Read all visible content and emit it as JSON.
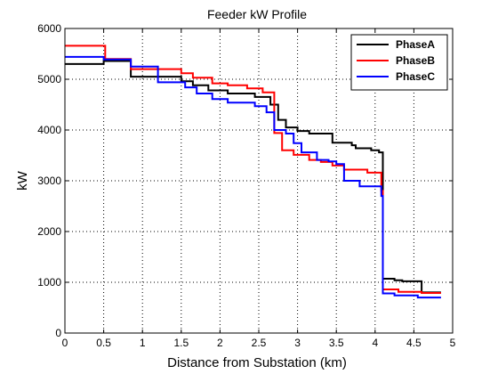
{
  "chart_data": {
    "type": "line",
    "step": true,
    "title": "Feeder kW Profile",
    "xlabel": "Distance from Substation (km)",
    "ylabel": "kW",
    "xlim": [
      0,
      5
    ],
    "ylim": [
      0,
      6000
    ],
    "x_ticks": [
      "0",
      "0.5",
      "1",
      "1.5",
      "2",
      "2.5",
      "3",
      "3.5",
      "4",
      "4.5",
      "5"
    ],
    "y_ticks": [
      "0",
      "1000",
      "2000",
      "3000",
      "4000",
      "5000",
      "6000"
    ],
    "grid": true,
    "legend_position": "top-right",
    "series": [
      {
        "name": "PhaseA",
        "color": "#000000",
        "points": [
          [
            0,
            5300
          ],
          [
            0.5,
            5300
          ],
          [
            0.5,
            5360
          ],
          [
            0.85,
            5360
          ],
          [
            0.85,
            5050
          ],
          [
            1.5,
            5050
          ],
          [
            1.5,
            4960
          ],
          [
            1.65,
            4960
          ],
          [
            1.65,
            4880
          ],
          [
            1.85,
            4880
          ],
          [
            1.85,
            4780
          ],
          [
            2.1,
            4780
          ],
          [
            2.1,
            4720
          ],
          [
            2.45,
            4720
          ],
          [
            2.45,
            4650
          ],
          [
            2.65,
            4650
          ],
          [
            2.65,
            4500
          ],
          [
            2.75,
            4500
          ],
          [
            2.75,
            4200
          ],
          [
            2.85,
            4200
          ],
          [
            2.85,
            4050
          ],
          [
            3.0,
            4050
          ],
          [
            3.0,
            3980
          ],
          [
            3.15,
            3980
          ],
          [
            3.15,
            3930
          ],
          [
            3.45,
            3930
          ],
          [
            3.45,
            3750
          ],
          [
            3.7,
            3750
          ],
          [
            3.7,
            3700
          ],
          [
            3.75,
            3700
          ],
          [
            3.75,
            3640
          ],
          [
            3.95,
            3640
          ],
          [
            3.95,
            3600
          ],
          [
            4.05,
            3600
          ],
          [
            4.05,
            3560
          ],
          [
            4.1,
            3560
          ],
          [
            4.1,
            1070
          ],
          [
            4.25,
            1070
          ],
          [
            4.25,
            1040
          ],
          [
            4.35,
            1040
          ],
          [
            4.35,
            1020
          ],
          [
            4.6,
            1020
          ],
          [
            4.6,
            800
          ],
          [
            4.85,
            800
          ]
        ]
      },
      {
        "name": "PhaseB",
        "color": "#ff0000",
        "points": [
          [
            0,
            5660
          ],
          [
            0.52,
            5660
          ],
          [
            0.52,
            5400
          ],
          [
            0.85,
            5400
          ],
          [
            0.85,
            5200
          ],
          [
            1.5,
            5200
          ],
          [
            1.5,
            5120
          ],
          [
            1.65,
            5120
          ],
          [
            1.65,
            5030
          ],
          [
            1.9,
            5030
          ],
          [
            1.9,
            4920
          ],
          [
            2.1,
            4920
          ],
          [
            2.1,
            4880
          ],
          [
            2.35,
            4880
          ],
          [
            2.35,
            4820
          ],
          [
            2.55,
            4820
          ],
          [
            2.55,
            4740
          ],
          [
            2.7,
            4740
          ],
          [
            2.7,
            3940
          ],
          [
            2.8,
            3940
          ],
          [
            2.8,
            3600
          ],
          [
            2.95,
            3600
          ],
          [
            2.95,
            3510
          ],
          [
            3.15,
            3510
          ],
          [
            3.15,
            3410
          ],
          [
            3.3,
            3410
          ],
          [
            3.3,
            3370
          ],
          [
            3.45,
            3370
          ],
          [
            3.45,
            3300
          ],
          [
            3.6,
            3300
          ],
          [
            3.6,
            3220
          ],
          [
            3.9,
            3220
          ],
          [
            3.9,
            3160
          ],
          [
            4.08,
            3160
          ],
          [
            4.08,
            2800
          ],
          [
            4.1,
            2800
          ],
          [
            4.1,
            860
          ],
          [
            4.3,
            860
          ],
          [
            4.3,
            810
          ],
          [
            4.6,
            810
          ],
          [
            4.6,
            790
          ],
          [
            4.85,
            790
          ]
        ]
      },
      {
        "name": "PhaseC",
        "color": "#0000ff",
        "points": [
          [
            0,
            5440
          ],
          [
            0.5,
            5440
          ],
          [
            0.5,
            5390
          ],
          [
            0.85,
            5390
          ],
          [
            0.85,
            5250
          ],
          [
            1.2,
            5250
          ],
          [
            1.2,
            4940
          ],
          [
            1.55,
            4940
          ],
          [
            1.55,
            4840
          ],
          [
            1.7,
            4840
          ],
          [
            1.7,
            4720
          ],
          [
            1.9,
            4720
          ],
          [
            1.9,
            4610
          ],
          [
            2.1,
            4610
          ],
          [
            2.1,
            4540
          ],
          [
            2.45,
            4540
          ],
          [
            2.45,
            4470
          ],
          [
            2.6,
            4470
          ],
          [
            2.6,
            4350
          ],
          [
            2.7,
            4350
          ],
          [
            2.7,
            4000
          ],
          [
            2.85,
            4000
          ],
          [
            2.85,
            3930
          ],
          [
            2.95,
            3930
          ],
          [
            2.95,
            3740
          ],
          [
            3.05,
            3740
          ],
          [
            3.05,
            3560
          ],
          [
            3.25,
            3560
          ],
          [
            3.25,
            3410
          ],
          [
            3.4,
            3410
          ],
          [
            3.4,
            3380
          ],
          [
            3.5,
            3380
          ],
          [
            3.5,
            3330
          ],
          [
            3.6,
            3330
          ],
          [
            3.6,
            3000
          ],
          [
            3.8,
            3000
          ],
          [
            3.8,
            2890
          ],
          [
            4.08,
            2890
          ],
          [
            4.08,
            2700
          ],
          [
            4.1,
            2700
          ],
          [
            4.1,
            780
          ],
          [
            4.25,
            780
          ],
          [
            4.25,
            740
          ],
          [
            4.55,
            740
          ],
          [
            4.55,
            700
          ],
          [
            4.85,
            700
          ]
        ]
      }
    ]
  }
}
